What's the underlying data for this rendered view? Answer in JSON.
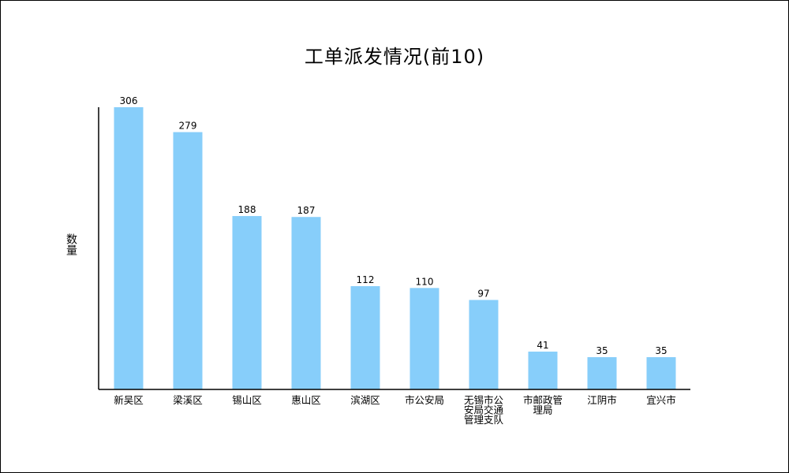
{
  "chart_data": {
    "type": "bar",
    "title": "工单派发情况(前10)",
    "ylabel": "数量",
    "xlabel": "",
    "categories": [
      [
        "新吴区"
      ],
      [
        "梁溪区"
      ],
      [
        "锡山区"
      ],
      [
        "惠山区"
      ],
      [
        "滨湖区"
      ],
      [
        "市公安局"
      ],
      [
        "无锡市公",
        "安局交通",
        "管理支队"
      ],
      [
        "市邮政管",
        "理局"
      ],
      [
        "江阴市"
      ],
      [
        "宜兴市"
      ]
    ],
    "values": [
      306,
      279,
      188,
      187,
      112,
      110,
      97,
      41,
      35,
      35
    ],
    "ylim": [
      0,
      306
    ],
    "grid": false,
    "bar_color": "#87CEFA"
  }
}
